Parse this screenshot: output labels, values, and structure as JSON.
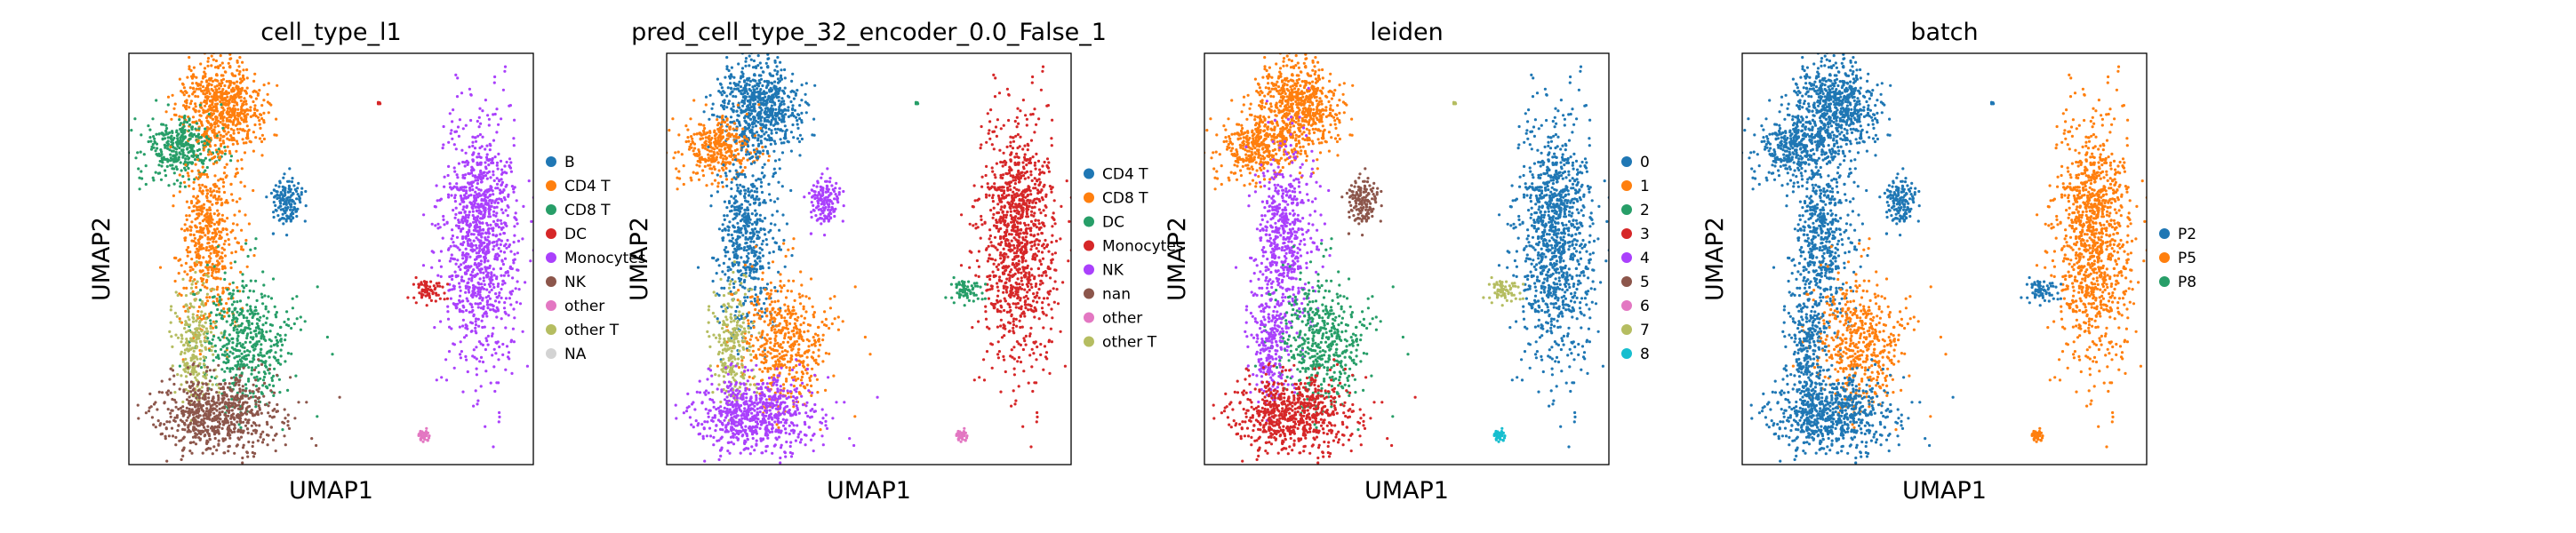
{
  "chart_data": [
    {
      "type": "scatter",
      "title": "cell_type_l1",
      "xlabel": "UMAP1",
      "ylabel": "UMAP2",
      "grid": false,
      "ticks": false,
      "legend": "right-outside",
      "series": [
        {
          "name": "B",
          "color": "#1f77b4"
        },
        {
          "name": "CD4 T",
          "color": "#ff7f0e"
        },
        {
          "name": "CD8 T",
          "color": "#279e68"
        },
        {
          "name": "DC",
          "color": "#d62728"
        },
        {
          "name": "Monocytes",
          "color": "#aa40fc"
        },
        {
          "name": "NK",
          "color": "#8c564b"
        },
        {
          "name": "other",
          "color": "#e377c2"
        },
        {
          "name": "other T",
          "color": "#b5bd61"
        },
        {
          "name": "NA",
          "color": "#d3d3d3"
        }
      ],
      "regions": [
        {
          "label": "CD4 T",
          "x": 0.23,
          "y": 0.87,
          "sx": 0.05,
          "sy": 0.06,
          "n": 700
        },
        {
          "label": "CD8 T",
          "x": 0.12,
          "y": 0.77,
          "sx": 0.045,
          "sy": 0.04,
          "n": 350
        },
        {
          "label": "CD4 T",
          "x": 0.2,
          "y": 0.55,
          "sx": 0.035,
          "sy": 0.12,
          "n": 550
        },
        {
          "label": "CD8 T",
          "x": 0.29,
          "y": 0.3,
          "sx": 0.06,
          "sy": 0.08,
          "n": 500
        },
        {
          "label": "other T",
          "x": 0.16,
          "y": 0.28,
          "sx": 0.025,
          "sy": 0.08,
          "n": 250
        },
        {
          "label": "NK",
          "x": 0.22,
          "y": 0.12,
          "sx": 0.075,
          "sy": 0.05,
          "n": 700
        },
        {
          "label": "B",
          "x": 0.39,
          "y": 0.64,
          "sx": 0.02,
          "sy": 0.03,
          "n": 150
        },
        {
          "label": "Monocytes",
          "x": 0.87,
          "y": 0.55,
          "sx": 0.045,
          "sy": 0.15,
          "n": 1100
        },
        {
          "label": "DC",
          "x": 0.74,
          "y": 0.42,
          "sx": 0.02,
          "sy": 0.015,
          "n": 70
        },
        {
          "label": "other",
          "x": 0.73,
          "y": 0.07,
          "sx": 0.008,
          "sy": 0.008,
          "n": 40
        },
        {
          "label": "DC",
          "x": 0.62,
          "y": 0.88,
          "sx": 0.003,
          "sy": 0.003,
          "n": 6
        }
      ]
    },
    {
      "type": "scatter",
      "title": "pred_cell_type_32_encoder_0.0_False_1",
      "xlabel": "UMAP1",
      "ylabel": "UMAP2",
      "grid": false,
      "ticks": false,
      "legend": "right-outside",
      "series": [
        {
          "name": "CD4 T",
          "color": "#1f77b4"
        },
        {
          "name": "CD8 T",
          "color": "#ff7f0e"
        },
        {
          "name": "DC",
          "color": "#279e68"
        },
        {
          "name": "Monocytes",
          "color": "#d62728"
        },
        {
          "name": "NK",
          "color": "#aa40fc"
        },
        {
          "name": "nan",
          "color": "#8c564b"
        },
        {
          "name": "other",
          "color": "#e377c2"
        },
        {
          "name": "other T",
          "color": "#b5bd61"
        }
      ],
      "regions": [
        {
          "label": "CD4 T",
          "x": 0.23,
          "y": 0.87,
          "sx": 0.05,
          "sy": 0.06,
          "n": 700
        },
        {
          "label": "CD8 T",
          "x": 0.12,
          "y": 0.77,
          "sx": 0.045,
          "sy": 0.04,
          "n": 350
        },
        {
          "label": "CD4 T",
          "x": 0.2,
          "y": 0.55,
          "sx": 0.035,
          "sy": 0.12,
          "n": 550
        },
        {
          "label": "CD8 T",
          "x": 0.29,
          "y": 0.3,
          "sx": 0.06,
          "sy": 0.08,
          "n": 500
        },
        {
          "label": "other T",
          "x": 0.16,
          "y": 0.28,
          "sx": 0.025,
          "sy": 0.08,
          "n": 250
        },
        {
          "label": "NK",
          "x": 0.22,
          "y": 0.12,
          "sx": 0.075,
          "sy": 0.05,
          "n": 700
        },
        {
          "label": "NK",
          "x": 0.39,
          "y": 0.64,
          "sx": 0.02,
          "sy": 0.03,
          "n": 150
        },
        {
          "label": "Monocytes",
          "x": 0.87,
          "y": 0.55,
          "sx": 0.045,
          "sy": 0.15,
          "n": 1100
        },
        {
          "label": "DC",
          "x": 0.74,
          "y": 0.42,
          "sx": 0.02,
          "sy": 0.015,
          "n": 70
        },
        {
          "label": "other",
          "x": 0.73,
          "y": 0.07,
          "sx": 0.008,
          "sy": 0.008,
          "n": 40
        },
        {
          "label": "DC",
          "x": 0.62,
          "y": 0.88,
          "sx": 0.003,
          "sy": 0.003,
          "n": 6
        }
      ]
    },
    {
      "type": "scatter",
      "title": "leiden",
      "xlabel": "UMAP1",
      "ylabel": "UMAP2",
      "grid": false,
      "ticks": false,
      "legend": "right-outside",
      "series": [
        {
          "name": "0",
          "color": "#1f77b4"
        },
        {
          "name": "1",
          "color": "#ff7f0e"
        },
        {
          "name": "2",
          "color": "#279e68"
        },
        {
          "name": "3",
          "color": "#d62728"
        },
        {
          "name": "4",
          "color": "#aa40fc"
        },
        {
          "name": "5",
          "color": "#8c564b"
        },
        {
          "name": "6",
          "color": "#e377c2"
        },
        {
          "name": "7",
          "color": "#b5bd61"
        },
        {
          "name": "8",
          "color": "#17becf"
        }
      ],
      "regions": [
        {
          "label": "1",
          "x": 0.23,
          "y": 0.87,
          "sx": 0.05,
          "sy": 0.06,
          "n": 700
        },
        {
          "label": "1",
          "x": 0.12,
          "y": 0.77,
          "sx": 0.045,
          "sy": 0.04,
          "n": 350
        },
        {
          "label": "4",
          "x": 0.2,
          "y": 0.55,
          "sx": 0.035,
          "sy": 0.12,
          "n": 550
        },
        {
          "label": "2",
          "x": 0.29,
          "y": 0.3,
          "sx": 0.06,
          "sy": 0.08,
          "n": 500
        },
        {
          "label": "4",
          "x": 0.16,
          "y": 0.28,
          "sx": 0.025,
          "sy": 0.08,
          "n": 250
        },
        {
          "label": "3",
          "x": 0.22,
          "y": 0.12,
          "sx": 0.075,
          "sy": 0.05,
          "n": 700
        },
        {
          "label": "5",
          "x": 0.39,
          "y": 0.64,
          "sx": 0.02,
          "sy": 0.03,
          "n": 150
        },
        {
          "label": "0",
          "x": 0.87,
          "y": 0.55,
          "sx": 0.045,
          "sy": 0.15,
          "n": 1100
        },
        {
          "label": "7",
          "x": 0.74,
          "y": 0.42,
          "sx": 0.02,
          "sy": 0.015,
          "n": 70
        },
        {
          "label": "8",
          "x": 0.73,
          "y": 0.07,
          "sx": 0.008,
          "sy": 0.008,
          "n": 40
        },
        {
          "label": "7",
          "x": 0.62,
          "y": 0.88,
          "sx": 0.003,
          "sy": 0.003,
          "n": 6
        }
      ]
    },
    {
      "type": "scatter",
      "title": "batch",
      "xlabel": "UMAP1",
      "ylabel": "UMAP2",
      "grid": false,
      "ticks": false,
      "legend": "right-outside",
      "series": [
        {
          "name": "P2",
          "color": "#1f77b4"
        },
        {
          "name": "P5",
          "color": "#ff7f0e"
        },
        {
          "name": "P8",
          "color": "#279e68"
        }
      ],
      "regions": [
        {
          "label": "P2",
          "x": 0.23,
          "y": 0.87,
          "sx": 0.05,
          "sy": 0.06,
          "n": 700
        },
        {
          "label": "P2",
          "x": 0.12,
          "y": 0.77,
          "sx": 0.045,
          "sy": 0.04,
          "n": 350
        },
        {
          "label": "P2",
          "x": 0.2,
          "y": 0.55,
          "sx": 0.035,
          "sy": 0.12,
          "n": 550
        },
        {
          "label": "P5",
          "x": 0.29,
          "y": 0.3,
          "sx": 0.06,
          "sy": 0.08,
          "n": 500
        },
        {
          "label": "P2",
          "x": 0.16,
          "y": 0.28,
          "sx": 0.025,
          "sy": 0.08,
          "n": 250
        },
        {
          "label": "P2",
          "x": 0.22,
          "y": 0.12,
          "sx": 0.075,
          "sy": 0.05,
          "n": 700
        },
        {
          "label": "P2",
          "x": 0.39,
          "y": 0.64,
          "sx": 0.02,
          "sy": 0.03,
          "n": 150
        },
        {
          "label": "P5",
          "x": 0.87,
          "y": 0.55,
          "sx": 0.045,
          "sy": 0.15,
          "n": 1100
        },
        {
          "label": "P2",
          "x": 0.74,
          "y": 0.42,
          "sx": 0.02,
          "sy": 0.015,
          "n": 70
        },
        {
          "label": "P5",
          "x": 0.73,
          "y": 0.07,
          "sx": 0.008,
          "sy": 0.008,
          "n": 40
        },
        {
          "label": "P2",
          "x": 0.62,
          "y": 0.88,
          "sx": 0.003,
          "sy": 0.003,
          "n": 6
        }
      ]
    }
  ]
}
